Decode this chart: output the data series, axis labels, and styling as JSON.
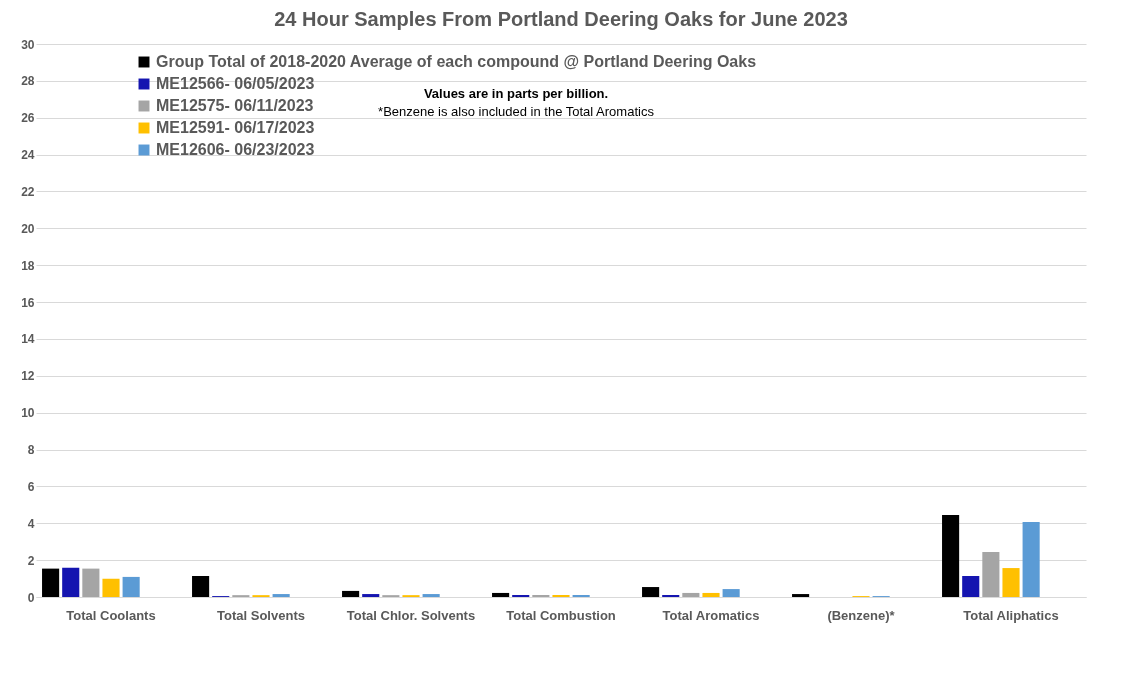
{
  "chart_data": {
    "type": "bar",
    "title": "24 Hour Samples From Portland Deering Oaks for June 2023",
    "categories": [
      "Total Coolants",
      "Total Solvents",
      "Total Chlor. Solvents",
      "Total Combustion",
      "Total Aromatics",
      "(Benzene)*",
      "Total Aliphatics"
    ],
    "series": [
      {
        "name": "Group Total of 2018-2020 Average of each compound @ Portland Deering Oaks",
        "color": "#000000",
        "values": [
          1.54,
          1.14,
          0.33,
          0.22,
          0.54,
          0.16,
          4.45
        ]
      },
      {
        "name": "ME12566- 06/05/2023",
        "color": "#1515b0",
        "values": [
          1.59,
          0.05,
          0.16,
          0.11,
          0.11,
          0,
          1.14
        ]
      },
      {
        "name": "ME12575- 06/11/2023",
        "color": "#a5a5a5",
        "values": [
          1.54,
          0.1,
          0.1,
          0.11,
          0.22,
          0,
          2.44
        ]
      },
      {
        "name": "ME12591- 06/17/2023",
        "color": "#ffc000",
        "values": [
          0.99,
          0.1,
          0.1,
          0.11,
          0.22,
          0.05,
          1.57
        ]
      },
      {
        "name": "ME12606- 06/23/2023",
        "color": "#5b9bd5",
        "values": [
          1.09,
          0.16,
          0.16,
          0.11,
          0.43,
          0.05,
          4.07
        ]
      }
    ],
    "ylim": [
      0,
      30
    ],
    "yticks": [
      0,
      2,
      4,
      6,
      8,
      10,
      12,
      14,
      16,
      18,
      20,
      22,
      24,
      26,
      28,
      30
    ],
    "grid": "y",
    "legend": "top left",
    "annotations": [
      "Values are in parts per billion.",
      "*Benzene is also included in the Total Aromatics"
    ]
  }
}
